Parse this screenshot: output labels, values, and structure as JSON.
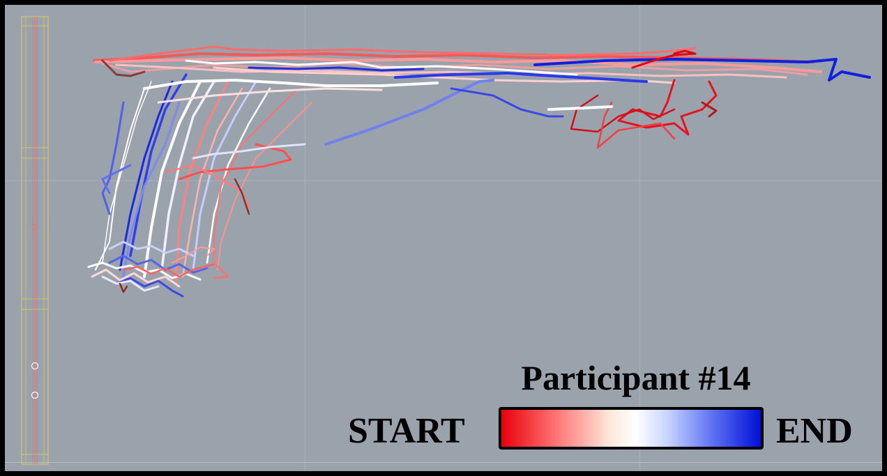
{
  "legend": {
    "title": "Participant #14",
    "start_label": "START",
    "end_label": "END",
    "gradient_colors": [
      "#e8000a",
      "#ff7a7a",
      "#ffffff",
      "#5a6ef0",
      "#0010d8"
    ]
  },
  "colors": {
    "background": "#9aa2ab",
    "frame": "#000000",
    "rack_outline": "#d9c76a",
    "rack_inner": "#e07070"
  },
  "icons": {
    "rack": "vertical-rack-guide"
  }
}
